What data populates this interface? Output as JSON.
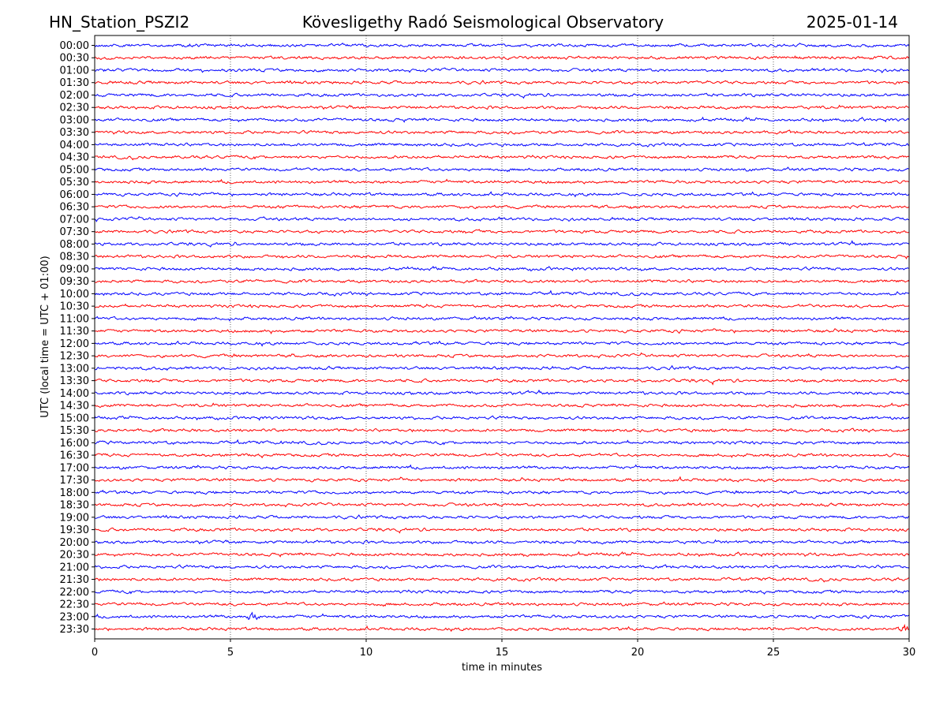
{
  "header": {
    "station": "HN_Station_PSZI2",
    "observatory": "Kövesligethy Radó Seismological Observatory",
    "date": "2025-01-14"
  },
  "chart_data": {
    "type": "line",
    "title": "Kövesligethy Radó Seismological Observatory",
    "xlabel": "time in minutes",
    "ylabel": "UTC (local time = UTC + 01:00)",
    "xlim": [
      0,
      30
    ],
    "x_ticks": [
      "0",
      "5",
      "10",
      "15",
      "20",
      "25",
      "30"
    ],
    "grid": "vertical dotted at each x tick",
    "row_labels": [
      "00:00",
      "00:30",
      "01:00",
      "01:30",
      "02:00",
      "02:30",
      "03:00",
      "03:30",
      "04:00",
      "04:30",
      "05:00",
      "05:30",
      "06:00",
      "06:30",
      "07:00",
      "07:30",
      "08:00",
      "08:30",
      "09:00",
      "09:30",
      "10:00",
      "10:30",
      "11:00",
      "11:30",
      "12:00",
      "12:30",
      "13:00",
      "13:30",
      "14:00",
      "14:30",
      "15:00",
      "15:30",
      "16:00",
      "16:30",
      "17:00",
      "17:30",
      "18:00",
      "18:30",
      "19:00",
      "19:30",
      "20:00",
      "20:30",
      "21:00",
      "21:30",
      "22:00",
      "22:30",
      "23:00",
      "23:30"
    ],
    "series_colors": [
      "#0000ff",
      "#ff0000"
    ],
    "notable_events": [
      {
        "row": "23:30",
        "minute": 29.8,
        "note": "larger amplitude arrival at end of trace"
      },
      {
        "row": "23:00",
        "minute": 5.8,
        "note": "small burst"
      }
    ]
  }
}
